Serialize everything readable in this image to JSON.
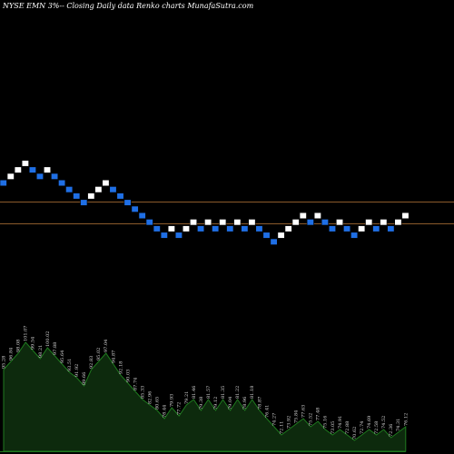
{
  "chart_data": {
    "type": "renko",
    "title": "NYSE EMN 3%-- Closing Daily data Renko charts MunafaSutra.com",
    "colors": {
      "background": "#000000",
      "brick_up": "#ffffff",
      "brick_down": "#1f6fe5",
      "brick_border": "#000000",
      "reference_line": "#8b5a2b",
      "volume_fill": "#0d2a0d",
      "volume_line": "#1f7a1f",
      "volume_label": "#d8d8d8"
    },
    "reference_lines": [
      0.444,
      0.492
    ],
    "bricks": [
      {
        "dir": "down",
        "level": 9
      },
      {
        "dir": "up",
        "level": 10
      },
      {
        "dir": "up",
        "level": 11
      },
      {
        "dir": "up",
        "level": 12
      },
      {
        "dir": "down",
        "level": 11
      },
      {
        "dir": "down",
        "level": 10
      },
      {
        "dir": "up",
        "level": 11
      },
      {
        "dir": "down",
        "level": 10
      },
      {
        "dir": "down",
        "level": 9
      },
      {
        "dir": "down",
        "level": 8
      },
      {
        "dir": "down",
        "level": 7
      },
      {
        "dir": "down",
        "level": 6
      },
      {
        "dir": "up",
        "level": 7
      },
      {
        "dir": "up",
        "level": 8
      },
      {
        "dir": "up",
        "level": 9
      },
      {
        "dir": "down",
        "level": 8
      },
      {
        "dir": "down",
        "level": 7
      },
      {
        "dir": "down",
        "level": 6
      },
      {
        "dir": "down",
        "level": 5
      },
      {
        "dir": "down",
        "level": 4
      },
      {
        "dir": "down",
        "level": 3
      },
      {
        "dir": "down",
        "level": 2
      },
      {
        "dir": "down",
        "level": 1
      },
      {
        "dir": "up",
        "level": 2
      },
      {
        "dir": "down",
        "level": 1
      },
      {
        "dir": "up",
        "level": 2
      },
      {
        "dir": "up",
        "level": 3
      },
      {
        "dir": "down",
        "level": 2
      },
      {
        "dir": "up",
        "level": 3
      },
      {
        "dir": "down",
        "level": 2
      },
      {
        "dir": "up",
        "level": 3
      },
      {
        "dir": "down",
        "level": 2
      },
      {
        "dir": "up",
        "level": 3
      },
      {
        "dir": "down",
        "level": 2
      },
      {
        "dir": "up",
        "level": 3
      },
      {
        "dir": "down",
        "level": 2
      },
      {
        "dir": "down",
        "level": 1
      },
      {
        "dir": "down",
        "level": 0
      },
      {
        "dir": "up",
        "level": 1
      },
      {
        "dir": "up",
        "level": 2
      },
      {
        "dir": "up",
        "level": 3
      },
      {
        "dir": "up",
        "level": 4
      },
      {
        "dir": "down",
        "level": 3
      },
      {
        "dir": "up",
        "level": 4
      },
      {
        "dir": "down",
        "level": 3
      },
      {
        "dir": "down",
        "level": 2
      },
      {
        "dir": "up",
        "level": 3
      },
      {
        "dir": "down",
        "level": 2
      },
      {
        "dir": "down",
        "level": 1
      },
      {
        "dir": "up",
        "level": 2
      },
      {
        "dir": "up",
        "level": 3
      },
      {
        "dir": "down",
        "level": 2
      },
      {
        "dir": "up",
        "level": 3
      },
      {
        "dir": "down",
        "level": 2
      },
      {
        "dir": "up",
        "level": 3
      },
      {
        "dir": "up",
        "level": 4
      }
    ],
    "volume": [
      {
        "value": 0.3,
        "label": "95.28"
      },
      {
        "value": 0.33,
        "label": "96.84"
      },
      {
        "value": 0.36,
        "label": "98.08"
      },
      {
        "value": 0.4,
        "label": "101.07"
      },
      {
        "value": 0.37,
        "label": "99.54"
      },
      {
        "value": 0.34,
        "label": "98.21"
      },
      {
        "value": 0.38,
        "label": "100.02"
      },
      {
        "value": 0.35,
        "label": "97.88"
      },
      {
        "value": 0.32,
        "label": "95.64"
      },
      {
        "value": 0.29,
        "label": "93.51"
      },
      {
        "value": 0.27,
        "label": "91.92"
      },
      {
        "value": 0.24,
        "label": "89.66"
      },
      {
        "value": 0.3,
        "label": "92.83"
      },
      {
        "value": 0.33,
        "label": "95.02"
      },
      {
        "value": 0.36,
        "label": "97.04"
      },
      {
        "value": 0.32,
        "label": "94.87"
      },
      {
        "value": 0.28,
        "label": "92.18"
      },
      {
        "value": 0.25,
        "label": "90.03"
      },
      {
        "value": 0.22,
        "label": "87.74"
      },
      {
        "value": 0.19,
        "label": "85.33"
      },
      {
        "value": 0.17,
        "label": "82.96"
      },
      {
        "value": 0.15,
        "label": "80.65"
      },
      {
        "value": 0.12,
        "label": "78.44"
      },
      {
        "value": 0.16,
        "label": "79.93"
      },
      {
        "value": 0.13,
        "label": "77.72"
      },
      {
        "value": 0.17,
        "label": "79.21"
      },
      {
        "value": 0.19,
        "label": "81.46"
      },
      {
        "value": 0.15,
        "label": "79.38"
      },
      {
        "value": 0.19,
        "label": "81.57"
      },
      {
        "value": 0.15,
        "label": "79.12"
      },
      {
        "value": 0.19,
        "label": "81.35"
      },
      {
        "value": 0.15,
        "label": "79.04"
      },
      {
        "value": 0.19,
        "label": "81.22"
      },
      {
        "value": 0.15,
        "label": "78.96"
      },
      {
        "value": 0.19,
        "label": "81.18"
      },
      {
        "value": 0.15,
        "label": "78.87"
      },
      {
        "value": 0.12,
        "label": "76.41"
      },
      {
        "value": 0.09,
        "label": "74.27"
      },
      {
        "value": 0.06,
        "label": "72.11"
      },
      {
        "value": 0.08,
        "label": "73.92"
      },
      {
        "value": 0.1,
        "label": "75.84"
      },
      {
        "value": 0.12,
        "label": "77.63"
      },
      {
        "value": 0.09,
        "label": "75.52"
      },
      {
        "value": 0.11,
        "label": "77.48"
      },
      {
        "value": 0.08,
        "label": "75.16"
      },
      {
        "value": 0.06,
        "label": "73.05"
      },
      {
        "value": 0.08,
        "label": "74.91"
      },
      {
        "value": 0.06,
        "label": "72.88"
      },
      {
        "value": 0.04,
        "label": "70.62"
      },
      {
        "value": 0.06,
        "label": "72.74"
      },
      {
        "value": 0.08,
        "label": "74.69"
      },
      {
        "value": 0.06,
        "label": "72.58"
      },
      {
        "value": 0.08,
        "label": "74.52"
      },
      {
        "value": 0.05,
        "label": "72.36"
      },
      {
        "value": 0.07,
        "label": "74.31"
      },
      {
        "value": 0.09,
        "label": "76.12"
      }
    ]
  }
}
